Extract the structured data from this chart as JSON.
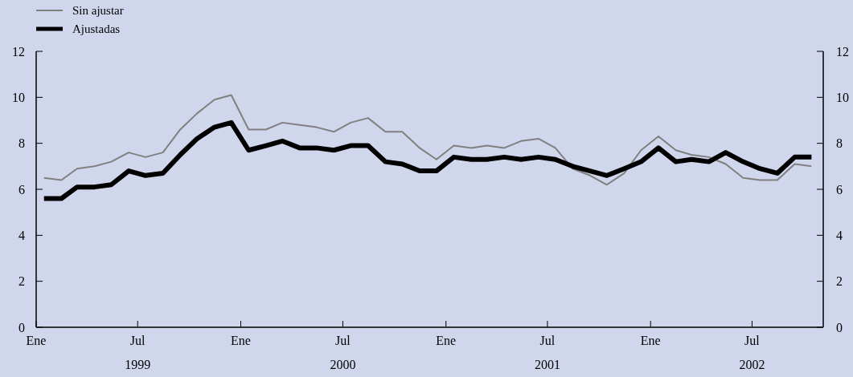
{
  "chart_data": {
    "type": "line",
    "x": [
      "1999-01-15",
      "1999-02-15",
      "1999-03-15",
      "1999-04-15",
      "1999-05-15",
      "1999-06-15",
      "1999-07-15",
      "1999-08-15",
      "1999-09-15",
      "1999-10-15",
      "1999-11-15",
      "1999-12-15",
      "2000-01-15",
      "2000-02-15",
      "2000-03-15",
      "2000-04-15",
      "2000-05-15",
      "2000-06-15",
      "2000-07-15",
      "2000-08-15",
      "2000-09-15",
      "2000-10-15",
      "2000-11-15",
      "2000-12-15",
      "2001-01-15",
      "2001-02-15",
      "2001-03-15",
      "2001-04-15",
      "2001-05-15",
      "2001-06-15",
      "2001-07-15",
      "2001-08-15",
      "2001-09-15",
      "2001-10-15",
      "2001-11-15",
      "2001-12-15",
      "2002-01-15",
      "2002-02-15",
      "2002-03-15",
      "2002-04-15",
      "2002-05-15",
      "2002-06-15",
      "2002-07-15",
      "2002-08-15",
      "2002-09-15",
      "2002-10-15"
    ],
    "series": [
      {
        "name": "Sin ajustar",
        "color": "#808080",
        "values": [
          6.5,
          6.4,
          6.9,
          7.0,
          7.2,
          7.6,
          7.4,
          7.6,
          8.6,
          9.3,
          9.9,
          10.1,
          8.6,
          8.6,
          8.9,
          8.8,
          8.7,
          8.5,
          8.9,
          9.1,
          8.5,
          8.5,
          7.8,
          7.3,
          7.9,
          7.8,
          7.9,
          7.8,
          8.1,
          8.2,
          7.8,
          6.9,
          6.6,
          6.2,
          6.7,
          7.7,
          8.3,
          7.7,
          7.5,
          7.4,
          7.1,
          6.5,
          6.4,
          6.4,
          7.1,
          7.0
        ]
      },
      {
        "name": "Ajustadas",
        "color": "#000000",
        "values": [
          5.6,
          5.6,
          6.1,
          6.1,
          6.2,
          6.8,
          6.6,
          6.7,
          7.5,
          8.2,
          8.7,
          8.9,
          7.7,
          7.9,
          8.1,
          7.8,
          7.8,
          7.7,
          7.9,
          7.9,
          7.2,
          7.1,
          6.8,
          6.8,
          7.4,
          7.3,
          7.3,
          7.4,
          7.3,
          7.4,
          7.3,
          7.0,
          6.8,
          6.6,
          6.9,
          7.2,
          7.8,
          7.2,
          7.3,
          7.2,
          7.6,
          7.2,
          6.9,
          6.7,
          7.4,
          7.4
        ]
      }
    ],
    "xlim": [
      "1999-01-01",
      "2002-11-05"
    ],
    "xticks": [
      {
        "value": "1999-01-01",
        "label": "Ene"
      },
      {
        "value": "1999-07-01",
        "label": "Jul\n1999"
      },
      {
        "value": "2000-01-01",
        "label": "Ene"
      },
      {
        "value": "2000-07-01",
        "label": "Jul\n2000"
      },
      {
        "value": "2001-01-01",
        "label": "Ene"
      },
      {
        "value": "2001-07-01",
        "label": "Jul\n2001"
      },
      {
        "value": "2002-01-01",
        "label": "Ene"
      },
      {
        "value": "2002-07-01",
        "label": "Jul\n2002"
      }
    ],
    "ylim": [
      0,
      12
    ],
    "yticks": [
      0,
      2,
      4,
      6,
      8,
      10,
      12
    ],
    "y2lim": [
      0,
      12
    ],
    "y2ticks": [
      0,
      2,
      4,
      6,
      8,
      10,
      12
    ],
    "legend": "top left",
    "line_style": "solid",
    "marker": "none",
    "grid": false
  }
}
